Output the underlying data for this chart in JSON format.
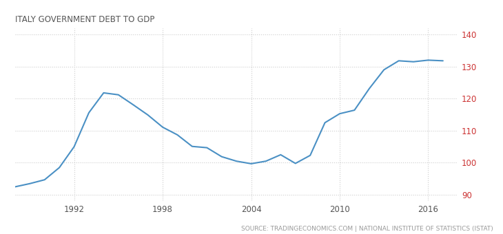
{
  "title": "ITALY GOVERNMENT DEBT TO GDP",
  "source_text": "SOURCE: TRADINGECONOMICS.COM | NATIONAL INSTITUTE OF STATISTICS (ISTAT)",
  "years": [
    1988,
    1989,
    1990,
    1991,
    1992,
    1993,
    1994,
    1995,
    1996,
    1997,
    1998,
    1999,
    2000,
    2001,
    2002,
    2003,
    2004,
    2005,
    2006,
    2007,
    2008,
    2009,
    2010,
    2011,
    2012,
    2013,
    2014,
    2015,
    2016,
    2017
  ],
  "values": [
    92.5,
    93.5,
    94.7,
    98.5,
    105.0,
    115.6,
    121.8,
    121.2,
    118.1,
    114.9,
    111.1,
    108.7,
    105.1,
    104.7,
    101.9,
    100.5,
    99.7,
    100.5,
    102.5,
    99.8,
    102.3,
    112.5,
    115.3,
    116.4,
    123.1,
    129.0,
    131.8,
    131.5,
    132.0,
    131.8
  ],
  "xlim": [
    1988.0,
    2018.0
  ],
  "ylim": [
    88,
    142
  ],
  "yticks": [
    90,
    100,
    110,
    120,
    130,
    140
  ],
  "xticks": [
    1992,
    1998,
    2004,
    2010,
    2016
  ],
  "line_color": "#4a90c4",
  "line_width": 1.5,
  "grid_color": "#cccccc",
  "bg_color": "#ffffff",
  "title_color": "#555555",
  "ytick_color": "#cc3333",
  "xtick_color": "#555555",
  "source_color": "#999999",
  "title_fontsize": 8.5,
  "source_fontsize": 6.5,
  "tick_fontsize": 8.5
}
